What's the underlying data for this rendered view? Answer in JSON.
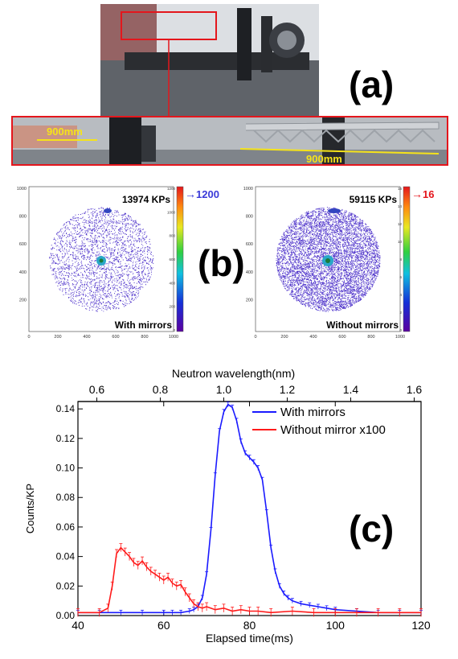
{
  "panel_labels": {
    "a": "(a)",
    "b": "(b)",
    "c": "(c)"
  },
  "photo": {
    "dimension_left": "900mm",
    "dimension_right": "900mm",
    "callout_color": "#e4161c",
    "dimension_color": "#f5e31a"
  },
  "detector_images": [
    {
      "counts": "13974 KPs",
      "caption": "With mirrors",
      "colorbar_max": "1200",
      "colorbar_ticks": [
        "1200",
        "1000",
        "800",
        "600",
        "400",
        "200",
        "0"
      ],
      "x_ticks": [
        "0",
        "200",
        "400",
        "600",
        "800",
        "1000"
      ],
      "y_ticks": [
        "1000",
        "800",
        "600",
        "400",
        "200"
      ],
      "arrow_color": "#3a3ad8"
    },
    {
      "counts": "59115 KPs",
      "caption": "Without mirrors",
      "colorbar_max": "16",
      "colorbar_ticks": [
        "16",
        "14",
        "12",
        "10",
        "8",
        "6",
        "4",
        "2",
        "0"
      ],
      "x_ticks": [
        "0",
        "200",
        "400",
        "600",
        "800",
        "1000"
      ],
      "y_ticks": [
        "1000",
        "800",
        "600",
        "400",
        "200"
      ],
      "arrow_color": "#e4161c"
    }
  ],
  "chart_data": {
    "type": "line",
    "xlabel": "Elapsed time(ms)",
    "x2label": "Neutron wavelength(nm)",
    "ylabel": "Counts/KP",
    "xlim": [
      40,
      120
    ],
    "ylim": [
      0,
      0.145
    ],
    "x_ticks": [
      40,
      60,
      80,
      100,
      120
    ],
    "y_ticks": [
      0.0,
      0.02,
      0.04,
      0.06,
      0.08,
      0.1,
      0.12,
      0.14
    ],
    "y_tick_labels": [
      "0.00",
      "0.02",
      "0.04",
      "0.06",
      "0.08",
      "0.10",
      "0.12",
      "0.14"
    ],
    "x2_ticks": [
      0.6,
      0.8,
      1.0,
      1.2,
      1.4,
      1.6
    ],
    "x2_tick_labels": [
      "0.6",
      "0.8",
      "1.0",
      "1.2",
      "1.4",
      "1.6"
    ],
    "x2_ms_per_nm": 74.0,
    "legend_position": "top-right",
    "series": [
      {
        "name": "With mirrors",
        "color": "#1a1aff",
        "x": [
          40,
          45,
          50,
          55,
          60,
          62,
          64,
          66,
          67,
          68,
          69,
          70,
          71,
          72,
          73,
          74,
          75,
          76,
          77,
          78,
          79,
          80,
          81,
          82,
          83,
          84,
          85,
          86,
          87,
          88,
          89,
          90,
          92,
          94,
          96,
          98,
          100,
          105,
          110,
          115,
          120
        ],
        "y": [
          0.002,
          0.002,
          0.002,
          0.002,
          0.002,
          0.002,
          0.002,
          0.003,
          0.004,
          0.006,
          0.012,
          0.028,
          0.058,
          0.095,
          0.125,
          0.138,
          0.143,
          0.141,
          0.132,
          0.118,
          0.11,
          0.107,
          0.104,
          0.1,
          0.092,
          0.07,
          0.046,
          0.03,
          0.02,
          0.015,
          0.012,
          0.01,
          0.008,
          0.007,
          0.006,
          0.005,
          0.004,
          0.003,
          0.002,
          0.002,
          0.002
        ]
      },
      {
        "name": "Without mirror x100",
        "color": "#ff1a1a",
        "x": [
          40,
          45,
          47,
          48,
          49,
          50,
          51,
          52,
          53,
          54,
          55,
          56,
          57,
          58,
          59,
          60,
          61,
          62,
          63,
          64,
          65,
          66,
          67,
          68,
          69,
          70,
          72,
          74,
          76,
          78,
          80,
          82,
          85,
          90,
          95,
          100,
          105,
          110,
          115,
          120
        ],
        "y": [
          0.002,
          0.002,
          0.005,
          0.02,
          0.042,
          0.046,
          0.043,
          0.04,
          0.036,
          0.034,
          0.037,
          0.033,
          0.03,
          0.028,
          0.026,
          0.024,
          0.026,
          0.022,
          0.02,
          0.021,
          0.016,
          0.012,
          0.008,
          0.006,
          0.005,
          0.006,
          0.004,
          0.005,
          0.003,
          0.004,
          0.003,
          0.003,
          0.002,
          0.003,
          0.002,
          0.002,
          0.002,
          0.002,
          0.002,
          0.002
        ]
      }
    ]
  }
}
